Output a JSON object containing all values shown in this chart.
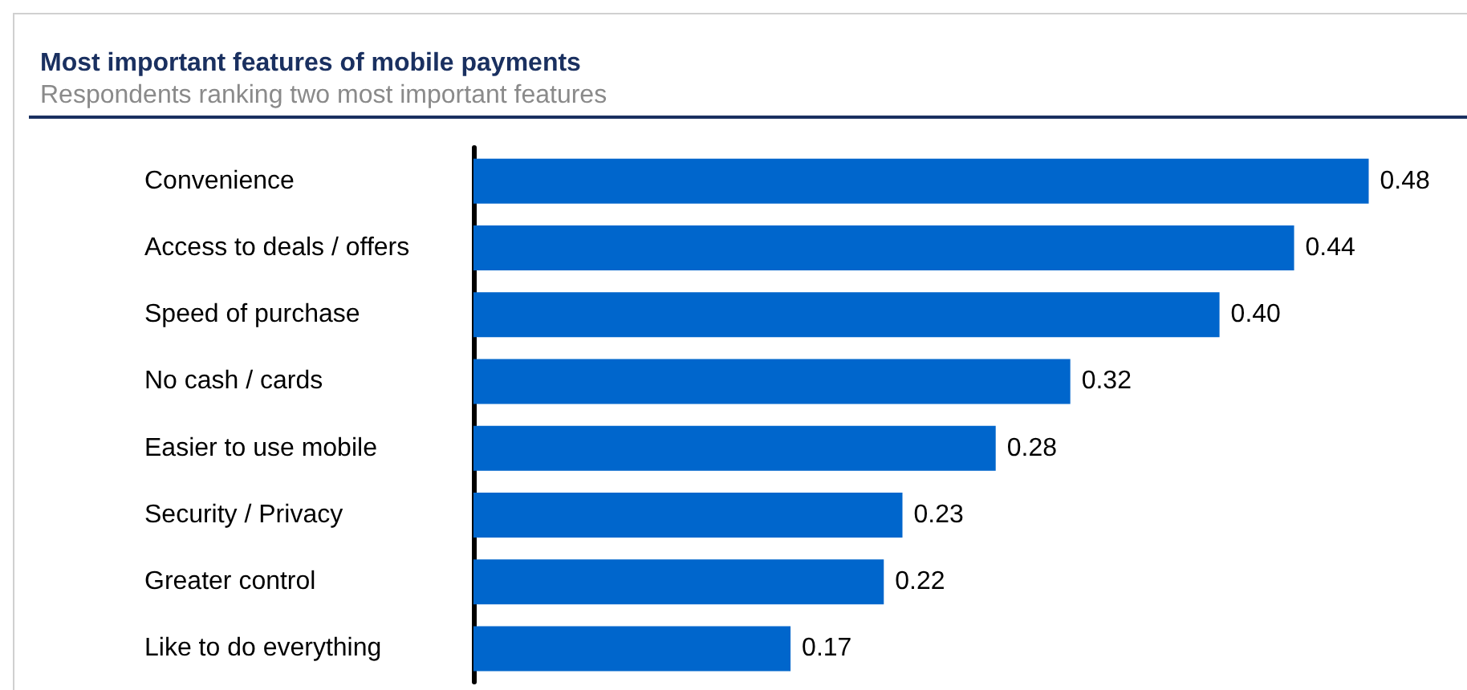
{
  "chart_data": {
    "type": "bar",
    "orientation": "horizontal",
    "title": "Most important features of mobile payments",
    "subtitle": "Respondents ranking two most important features",
    "categories": [
      "Convenience",
      "Access to deals / offers",
      "Speed of purchase",
      "No cash / cards",
      "Easier to use mobile",
      "Security / Privacy",
      "Greater control",
      "Like to do everything"
    ],
    "values": [
      0.48,
      0.44,
      0.4,
      0.32,
      0.28,
      0.23,
      0.22,
      0.17
    ],
    "value_labels": [
      "0.48",
      "0.44",
      "0.40",
      "0.32",
      "0.28",
      "0.23",
      "0.22",
      "0.17"
    ],
    "color": "#0066cc"
  }
}
